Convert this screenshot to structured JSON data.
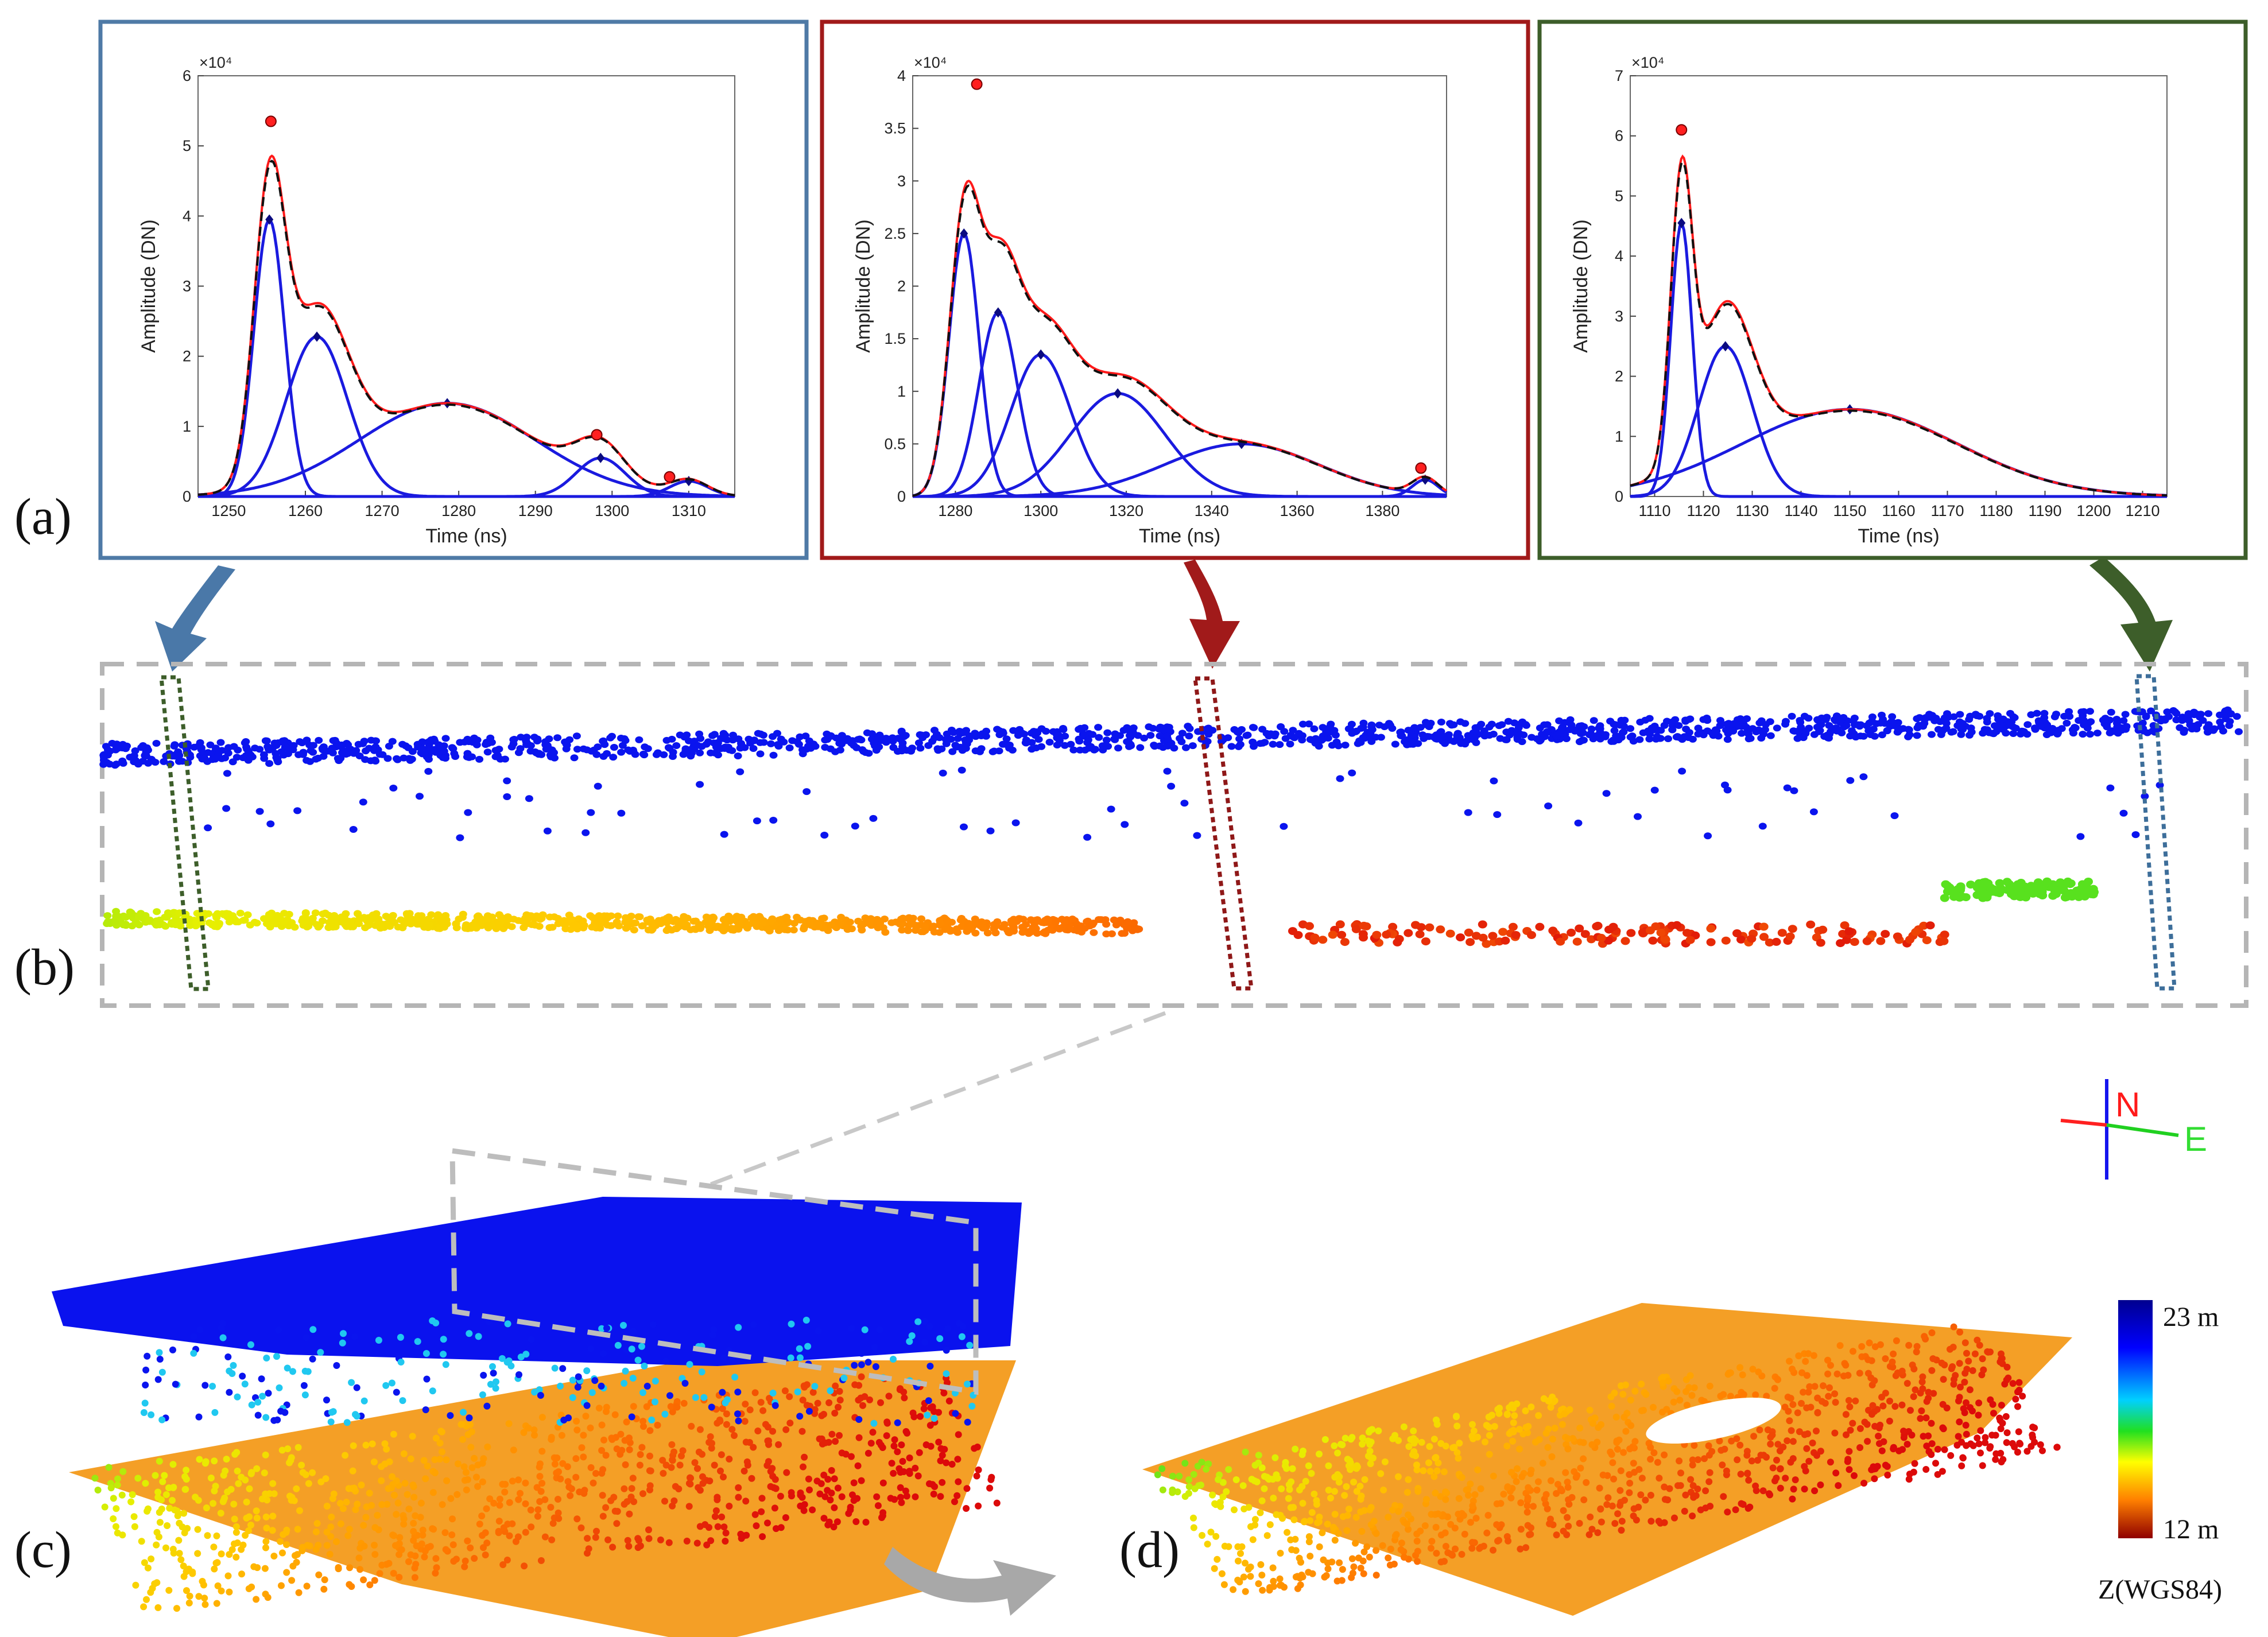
{
  "panel_labels": {
    "a": "(a)",
    "b": "(b)",
    "c": "(c)",
    "d": "(d)"
  },
  "colors": {
    "panel1_frame": "#4f7aa6",
    "panel2_frame": "#a11a1a",
    "panel3_frame": "#3d5e2a",
    "component": "#1a1adf",
    "fitted": "#ff1a1a",
    "observed": "#111111",
    "dashed_box": "#b5b5b5",
    "arrow_gray": "#a8a8a8"
  },
  "chart_data": [
    {
      "type": "line",
      "title": "",
      "xlabel": "Time (ns)",
      "ylabel": "Amplitude (DN)",
      "exponent_label": "×10⁴",
      "xlim": [
        1246,
        1316
      ],
      "ylim": [
        0,
        6
      ],
      "xticks": [
        "1250",
        "1260",
        "1270",
        "1280",
        "1290",
        "1300",
        "1310"
      ],
      "yticks": [
        "0",
        "1",
        "2",
        "3",
        "4",
        "5",
        "6"
      ],
      "components": [
        {
          "mu": 1255.3,
          "amp": 3.95,
          "sigma": 2.0
        },
        {
          "mu": 1261.5,
          "amp": 2.28,
          "sigma": 4.0
        },
        {
          "mu": 1278.5,
          "amp": 1.33,
          "sigma": 11.5
        },
        {
          "mu": 1298.5,
          "amp": 0.55,
          "sigma": 3.2
        },
        {
          "mu": 1310.0,
          "amp": 0.22,
          "sigma": 2.5
        }
      ],
      "peaks": [
        [
          1255.5,
          5.35
        ],
        [
          1298.0,
          0.88
        ],
        [
          1307.5,
          0.28
        ]
      ]
    },
    {
      "type": "line",
      "title": "",
      "xlabel": "Time (ns)",
      "ylabel": "Amplitude (DN)",
      "exponent_label": "×10⁴",
      "xlim": [
        1270,
        1395
      ],
      "ylim": [
        0,
        4
      ],
      "xticks": [
        "1280",
        "1300",
        "1320",
        "1340",
        "1360",
        "1380"
      ],
      "yticks": [
        "0",
        "0.5",
        "1",
        "1.5",
        "2",
        "2.5",
        "3",
        "3.5",
        "4"
      ],
      "components": [
        {
          "mu": 1282.0,
          "amp": 2.5,
          "sigma": 3.5
        },
        {
          "mu": 1290.0,
          "amp": 1.75,
          "sigma": 4.5
        },
        {
          "mu": 1300.0,
          "amp": 1.35,
          "sigma": 7.0
        },
        {
          "mu": 1318.0,
          "amp": 0.98,
          "sigma": 11.0
        },
        {
          "mu": 1347.0,
          "amp": 0.5,
          "sigma": 18.0
        },
        {
          "mu": 1390.0,
          "amp": 0.16,
          "sigma": 3.0
        }
      ],
      "peaks": [
        [
          1285.0,
          3.92
        ],
        [
          1389.0,
          0.27
        ]
      ]
    },
    {
      "type": "line",
      "title": "",
      "xlabel": "Time (ns)",
      "ylabel": "Amplitude (DN)",
      "exponent_label": "×10⁴",
      "xlim": [
        1105,
        1215
      ],
      "ylim": [
        0,
        7
      ],
      "xticks": [
        "1110",
        "1120",
        "1130",
        "1140",
        "1150",
        "1160",
        "1170",
        "1180",
        "1190",
        "1200",
        "1210"
      ],
      "yticks": [
        "0",
        "1",
        "2",
        "3",
        "4",
        "5",
        "6",
        "7"
      ],
      "components": [
        {
          "mu": 1115.5,
          "amp": 4.55,
          "sigma": 2.2
        },
        {
          "mu": 1124.5,
          "amp": 2.5,
          "sigma": 5.5
        },
        {
          "mu": 1150.0,
          "amp": 1.45,
          "sigma": 22.0
        }
      ],
      "peaks": [
        [
          1115.5,
          6.1
        ]
      ]
    }
  ],
  "colorbar": {
    "max_label": "23 m",
    "min_label": "12 m",
    "caption": "Z(WGS84)"
  },
  "compass": {
    "north": "N",
    "east": "E"
  }
}
